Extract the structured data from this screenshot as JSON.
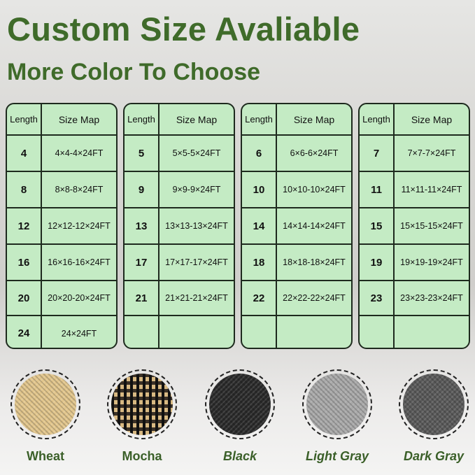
{
  "title": "Custom Size Avaliable",
  "subtitle": "More Color To Choose",
  "table_header": {
    "length": "Length",
    "size_map": "Size Map"
  },
  "tables": [
    {
      "rows": [
        [
          "4",
          "4×4-4×24FT"
        ],
        [
          "8",
          "8×8-8×24FT"
        ],
        [
          "12",
          "12×12-12×24FT"
        ],
        [
          "16",
          "16×16-16×24FT"
        ],
        [
          "20",
          "20×20-20×24FT"
        ],
        [
          "24",
          "24×24FT"
        ]
      ]
    },
    {
      "rows": [
        [
          "5",
          "5×5-5×24FT"
        ],
        [
          "9",
          "9×9-9×24FT"
        ],
        [
          "13",
          "13×13-13×24FT"
        ],
        [
          "17",
          "17×17-17×24FT"
        ],
        [
          "21",
          "21×21-21×24FT"
        ],
        [
          "",
          ""
        ]
      ]
    },
    {
      "rows": [
        [
          "6",
          "6×6-6×24FT"
        ],
        [
          "10",
          "10×10-10×24FT"
        ],
        [
          "14",
          "14×14-14×24FT"
        ],
        [
          "18",
          "18×18-18×24FT"
        ],
        [
          "22",
          "22×22-22×24FT"
        ],
        [
          "",
          ""
        ]
      ]
    },
    {
      "rows": [
        [
          "7",
          "7×7-7×24FT"
        ],
        [
          "11",
          "11×11-11×24FT"
        ],
        [
          "15",
          "15×15-15×24FT"
        ],
        [
          "19",
          "19×19-19×24FT"
        ],
        [
          "23",
          "23×23-23×24FT"
        ],
        [
          "",
          ""
        ]
      ]
    }
  ],
  "colors": [
    {
      "name": "Wheat",
      "swatch": "#e2c68c",
      "italic": false
    },
    {
      "name": "Mocha",
      "swatch": "#8a7350",
      "italic": false
    },
    {
      "name": "Black",
      "swatch": "#2a2a2a",
      "italic": true
    },
    {
      "name": "Light Gray",
      "swatch": "#a9a9a9",
      "italic": true
    },
    {
      "name": "Dark Gray",
      "swatch": "#5a5a5a",
      "italic": true
    }
  ],
  "accent": "#3f6b2a"
}
